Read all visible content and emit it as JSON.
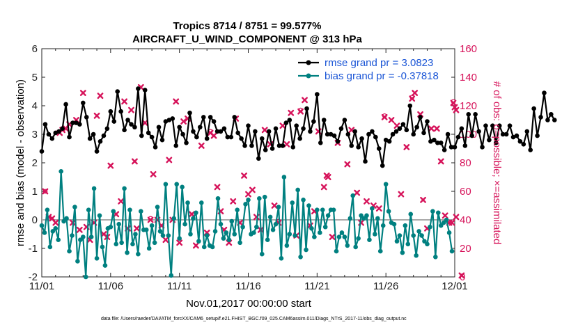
{
  "chart_data": {
    "type": "line",
    "title_line1": "Tropics 8714 / 8751 = 99.577%",
    "title_line2": "AIRCRAFT_U_WIND_COMPONENT @ 313 hPa",
    "xlabel": "Nov.01,2017 00:00:00 start",
    "ylabel_left": "rmse and bias (model - observation)",
    "ylabel_right": "# of obs: o=possible; ×=assimilated",
    "ylim_left": [
      -2,
      6
    ],
    "ylim_right": [
      0,
      160
    ],
    "yticks_left": [
      "-2",
      "-1",
      "0",
      "1",
      "2",
      "3",
      "4",
      "5",
      "6"
    ],
    "yticks_right": [
      "0",
      "20",
      "40",
      "60",
      "80",
      "100",
      "120",
      "140",
      "160"
    ],
    "x_range_days": [
      0,
      30
    ],
    "xtick_labels": [
      "11/01",
      "11/06",
      "11/11",
      "11/16",
      "11/21",
      "11/26",
      "12/01"
    ],
    "legend": {
      "rmse_label": "rmse grand pr = 3.0823",
      "bias_label": "bias grand pr = -0.37818"
    },
    "colors": {
      "rmse": "#000000",
      "bias": "#008080",
      "obs": "#d6135a",
      "legend_text": "#1a55d6",
      "zero_line": "#aaaaaa"
    },
    "series": [
      {
        "name": "rmse",
        "values": [
          2.4,
          3.35,
          3.0,
          2.85,
          3.05,
          3.1,
          3.2,
          4.05,
          2.9,
          3.4,
          3.4,
          3.35,
          4.1,
          3.6,
          2.85,
          3.0,
          2.4,
          2.75,
          2.95,
          3.2,
          3.8,
          3.45,
          4.5,
          3.8,
          3.15,
          3.5,
          3.35,
          3.25,
          4.6,
          2.95,
          4.55,
          3.05,
          2.9,
          2.55,
          3.25,
          2.8,
          3.45,
          3.5,
          3.55,
          2.6,
          3.25,
          3.0,
          2.7,
          3.75,
          3.1,
          2.9,
          3.25,
          3.6,
          2.85,
          3.6,
          3.45,
          3.1,
          3.1,
          3.2,
          2.9,
          2.9,
          3.6,
          3.05,
          2.85,
          2.6,
          3.3,
          2.6,
          3.1,
          2.15,
          2.85,
          2.45,
          3.1,
          2.5,
          3.2,
          2.6,
          2.6,
          3.4,
          3.5,
          2.55,
          3.3,
          2.85,
          3.2,
          3.9,
          3.1,
          3.45,
          4.4,
          2.7,
          3.5,
          3.0,
          3.0,
          2.95,
          2.75,
          3.2,
          3.5,
          3.0,
          2.6,
          3.1,
          2.55,
          2.85,
          2.05,
          3.0,
          3.1,
          2.9,
          2.5,
          1.9,
          2.8,
          2.75,
          3.0,
          3.1,
          3.2,
          3.35,
          3.15,
          4.0,
          3.0,
          3.25,
          3.6,
          3.05,
          3.45,
          2.75,
          2.8,
          2.7,
          2.7,
          2.45,
          3.0,
          2.55,
          2.55,
          2.9,
          3.2,
          2.6,
          3.7,
          2.95,
          3.7,
          3.1,
          2.55,
          3.3,
          2.8,
          3.3,
          2.7,
          3.3,
          3.0,
          3.0,
          3.3,
          2.9,
          2.95,
          2.75,
          2.65,
          3.1,
          2.45,
          3.9,
          2.95,
          3.6,
          4.45,
          3.5,
          3.7,
          3.5
        ],
        "start_day": 0,
        "step_day": 0.25
      },
      {
        "name": "bias",
        "values": [
          -0.2,
          -0.45,
          0.35,
          -0.95,
          -0.4,
          -0.3,
          -0.7,
          1.7,
          -0.05,
          0.05,
          -1.1,
          -0.55,
          0.45,
          -1.45,
          -0.7,
          -0.6,
          -2.0,
          0.35,
          -0.6,
          1.1,
          -1.35,
          0.15,
          -0.95,
          -1.6,
          -0.3,
          -0.25,
          0.3,
          -0.85,
          -0.15,
          -0.8,
          1.1,
          -1.15,
          0.35,
          -0.85,
          -0.5,
          -1.2,
          0.3,
          -0.35,
          -0.35,
          -1.0,
          -0.2,
          -0.8,
          0.45,
          -0.4,
          -0.55,
          1.25,
          -0.55,
          -1.95,
          0.05,
          1.25,
          -0.65,
          1.15,
          -0.15,
          0.6,
          -0.5,
          0.05,
          0.25,
          -0.75,
          0.6,
          -0.95,
          -0.55,
          -0.9,
          -0.95,
          -0.4,
          0.75,
          -0.15,
          -0.65,
          -0.45,
          -0.7,
          -0.05,
          -0.5,
          0.35,
          -0.8,
          -0.25,
          0.55,
          0.7,
          -0.5,
          -0.45,
          -0.25,
          0.75,
          -1.2,
          0.8,
          -0.7,
          0.1,
          -0.35,
          -0.15,
          0.45,
          -1.35,
          1.5,
          -0.9,
          -0.5,
          0.6,
          -0.55,
          1.05,
          -1.3,
          0.7,
          -1.05,
          0.5,
          -0.3,
          -0.6,
          0.35,
          -0.45,
          0.35,
          -0.25,
          0.15,
          0.35,
          0.35,
          -1.1,
          -0.6,
          -0.45,
          -0.6,
          -0.9,
          0.05,
          0.85,
          -0.95,
          -0.65,
          0.15,
          0.05,
          0.15,
          -0.7,
          0.4,
          -0.5,
          0.05,
          -1.1,
          -0.2,
          1.25,
          0.3,
          -0.1,
          -0.15,
          -0.75,
          -0.55,
          -1.15,
          -0.2,
          -0.85,
          0.2,
          -0.55,
          -1.25,
          -0.4,
          -0.55,
          -0.75,
          -0.85,
          -0.25,
          0.3,
          -1.3,
          0.25,
          -0.2,
          -0.1,
          0.0,
          -0.45,
          -1.1
        ],
        "start_day": 0,
        "step_day": 0.2
      },
      {
        "name": "obs_assimilated",
        "points": [
          [
            0.25,
            60
          ],
          [
            0.5,
            42
          ],
          [
            0.75,
            41
          ],
          [
            1.0,
            38
          ],
          [
            1.3,
            101
          ],
          [
            1.5,
            103
          ],
          [
            1.75,
            104
          ],
          [
            2.0,
            107
          ],
          [
            2.25,
            38
          ],
          [
            2.5,
            110
          ],
          [
            2.75,
            33
          ],
          [
            3.0,
            129
          ],
          [
            3.25,
            35
          ],
          [
            3.5,
            26
          ],
          [
            3.8,
            38
          ],
          [
            4.0,
            113
          ],
          [
            4.25,
            127
          ],
          [
            4.5,
            30
          ],
          [
            4.75,
            28
          ],
          [
            5.0,
            78
          ],
          [
            5.4,
            44
          ],
          [
            5.75,
            53
          ],
          [
            6.0,
            123
          ],
          [
            6.25,
            34
          ],
          [
            6.5,
            117
          ],
          [
            6.75,
            81
          ],
          [
            6.9,
            34
          ],
          [
            7.2,
            133
          ],
          [
            7.5,
            108
          ],
          [
            7.9,
            40
          ],
          [
            8.1,
            72
          ],
          [
            8.4,
            40
          ],
          [
            8.7,
            36
          ],
          [
            9.0,
            26
          ],
          [
            9.25,
            82
          ],
          [
            9.5,
            40
          ],
          [
            9.75,
            123
          ],
          [
            10.0,
            24
          ],
          [
            10.3,
            109
          ],
          [
            10.6,
            111
          ],
          [
            10.9,
            44
          ],
          [
            11.2,
            22
          ],
          [
            11.6,
            92
          ],
          [
            12.0,
            31
          ],
          [
            12.25,
            101
          ],
          [
            12.5,
            99
          ],
          [
            12.75,
            63
          ],
          [
            13.0,
            46
          ],
          [
            13.25,
            33
          ],
          [
            13.6,
            24
          ],
          [
            13.9,
            53
          ],
          [
            14.1,
            111
          ],
          [
            14.4,
            38
          ],
          [
            14.7,
            71
          ],
          [
            15.0,
            58
          ],
          [
            15.3,
            61
          ],
          [
            15.6,
            42
          ],
          [
            15.9,
            33
          ],
          [
            16.2,
            103
          ],
          [
            16.6,
            93
          ],
          [
            16.9,
            50
          ],
          [
            17.2,
            38
          ],
          [
            17.5,
            106
          ],
          [
            17.8,
            93
          ],
          [
            18.1,
            115
          ],
          [
            18.5,
            29
          ],
          [
            18.8,
            116
          ],
          [
            19.1,
            124
          ],
          [
            19.5,
            36
          ],
          [
            19.8,
            46
          ],
          [
            20.1,
            102
          ],
          [
            20.5,
            63
          ],
          [
            20.7,
            71
          ],
          [
            20.8,
            70
          ],
          [
            21.1,
            28
          ],
          [
            21.5,
            94
          ],
          [
            22.2,
            79
          ],
          [
            22.5,
            103
          ],
          [
            22.9,
            59
          ],
          [
            23.2,
            38
          ],
          [
            23.6,
            53
          ],
          [
            24.1,
            50
          ],
          [
            24.5,
            48
          ],
          [
            24.9,
            112
          ],
          [
            25.4,
            110
          ],
          [
            25.8,
            106
          ],
          [
            26.1,
            58
          ],
          [
            26.5,
            91
          ],
          [
            26.9,
            125
          ],
          [
            27.1,
            129
          ],
          [
            27.5,
            114
          ],
          [
            27.7,
            54
          ],
          [
            28.0,
            34
          ],
          [
            28.3,
            104
          ],
          [
            28.7,
            104
          ],
          [
            29.0,
            81
          ],
          [
            29.3,
            43
          ],
          [
            29.6,
            38
          ],
          [
            29.8,
            38
          ],
          [
            29.9,
            122
          ],
          [
            30.0,
            119
          ],
          [
            30.1,
            117
          ],
          [
            30.1,
            42
          ],
          [
            30.5,
            1
          ]
        ]
      },
      {
        "name": "obs_possible",
        "points": [
          [
            0.25,
            60
          ],
          [
            1.5,
            104
          ],
          [
            7.9,
            41
          ],
          [
            12.25,
            102
          ],
          [
            17.2,
            39
          ],
          [
            18.8,
            117
          ],
          [
            21.5,
            95
          ],
          [
            24.9,
            113
          ],
          [
            26.9,
            126
          ],
          [
            29.9,
            123
          ]
        ]
      }
    ]
  },
  "footer": {
    "data_file": "data file: /Users/raeder/DAI/ATM_forcXX/CAM6_setup/f.e21.FHIST_BGC.f09_025.CAM6assim.011/Diags_NTrS_2017-11/obs_diag_output.nc"
  }
}
